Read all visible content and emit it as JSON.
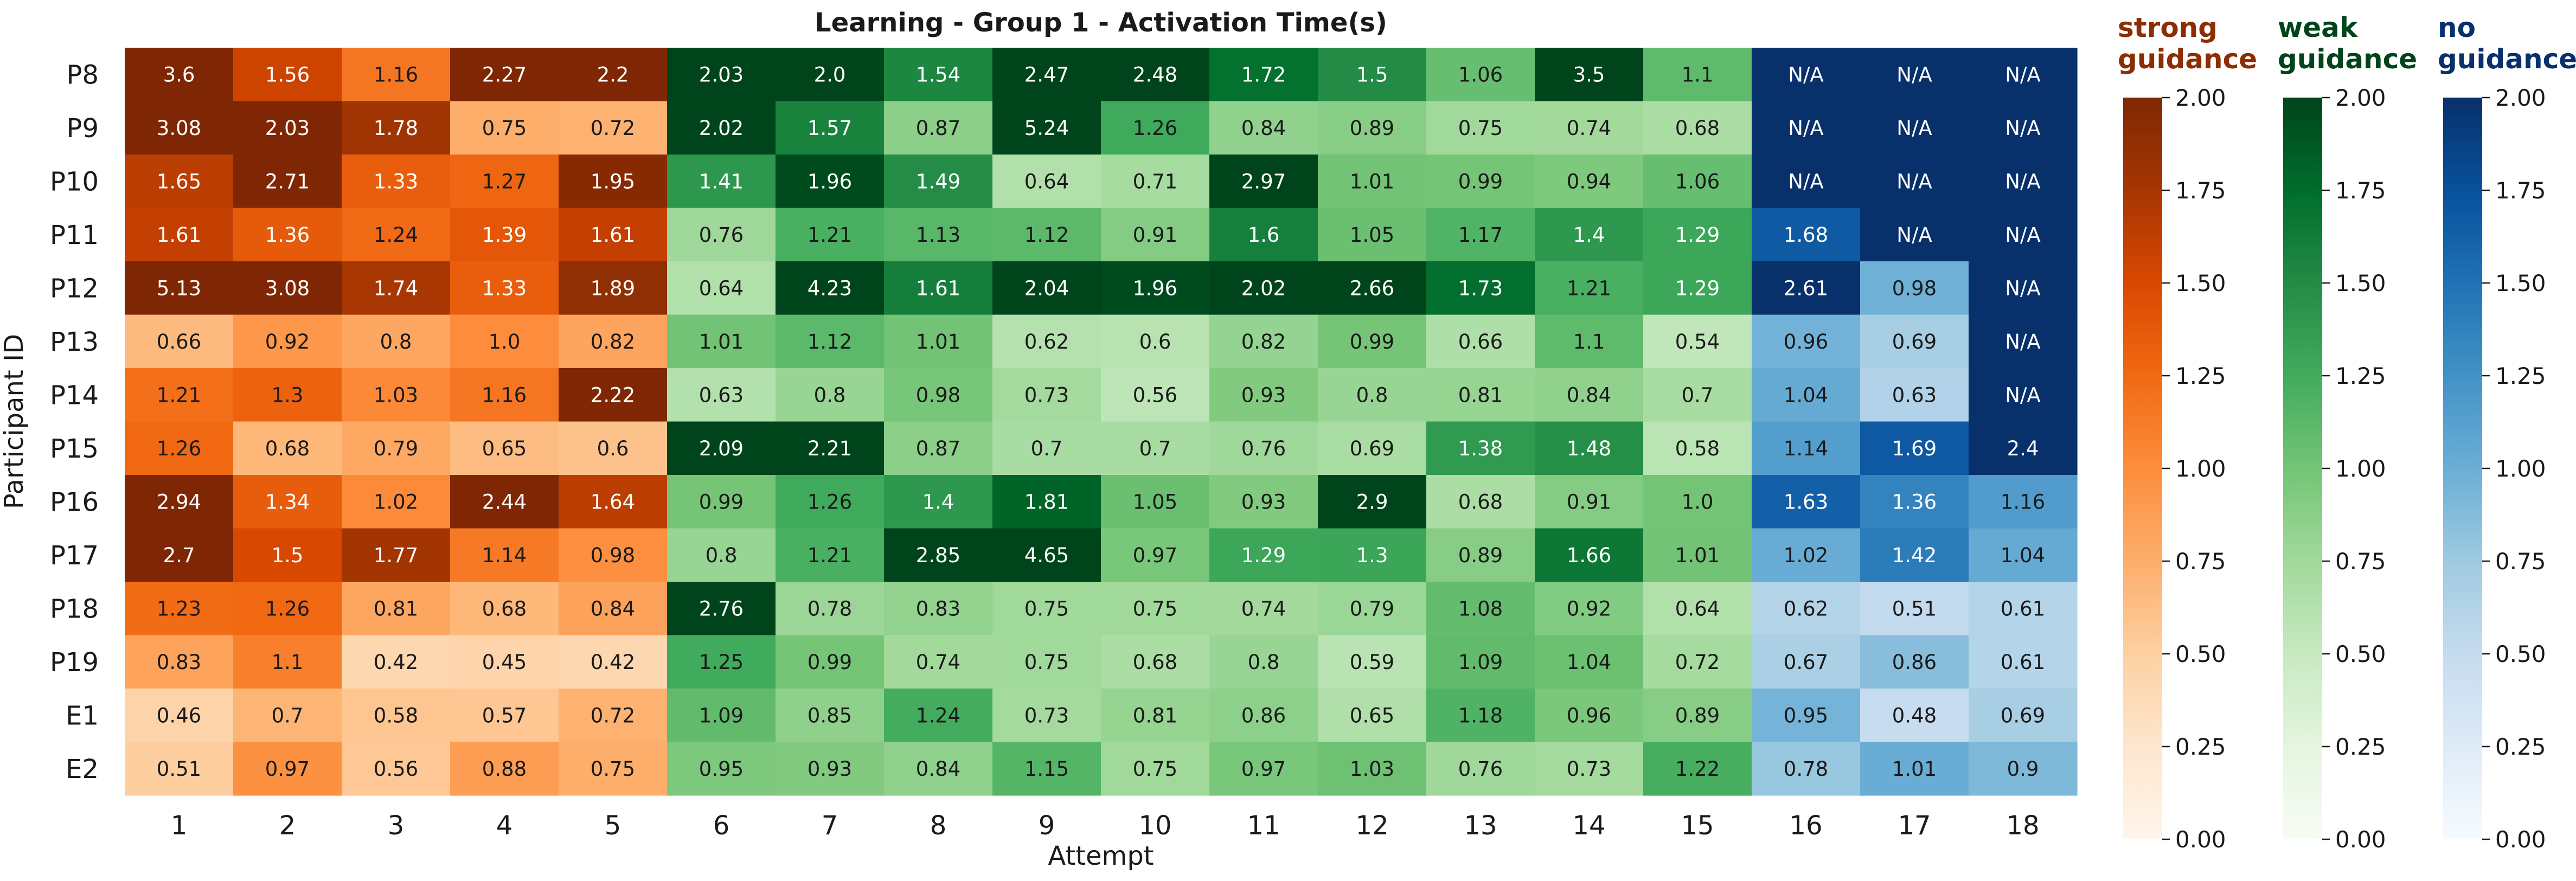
{
  "chart_data": {
    "type": "heatmap",
    "title": "Learning - Group 1 - Activation Time(s)",
    "xlabel": "Attempt",
    "ylabel": "Participant ID",
    "x": [
      "1",
      "2",
      "3",
      "4",
      "5",
      "6",
      "7",
      "8",
      "9",
      "10",
      "11",
      "12",
      "13",
      "14",
      "15",
      "16",
      "17",
      "18"
    ],
    "y": [
      "P8",
      "P9",
      "P10",
      "P11",
      "P12",
      "P13",
      "P14",
      "P15",
      "P16",
      "P17",
      "P18",
      "P19",
      "E1",
      "E2"
    ],
    "values": [
      [
        "3.6",
        "1.56",
        "1.16",
        "2.27",
        "2.2",
        "2.03",
        "2.0",
        "1.54",
        "2.47",
        "2.48",
        "1.72",
        "1.5",
        "1.06",
        "3.5",
        "1.1",
        "N/A",
        "N/A",
        "N/A"
      ],
      [
        "3.08",
        "2.03",
        "1.78",
        "0.75",
        "0.72",
        "2.02",
        "1.57",
        "0.87",
        "5.24",
        "1.26",
        "0.84",
        "0.89",
        "0.75",
        "0.74",
        "0.68",
        "N/A",
        "N/A",
        "N/A"
      ],
      [
        "1.65",
        "2.71",
        "1.33",
        "1.27",
        "1.95",
        "1.41",
        "1.96",
        "1.49",
        "0.64",
        "0.71",
        "2.97",
        "1.01",
        "0.99",
        "0.94",
        "1.06",
        "N/A",
        "N/A",
        "N/A"
      ],
      [
        "1.61",
        "1.36",
        "1.24",
        "1.39",
        "1.61",
        "0.76",
        "1.21",
        "1.13",
        "1.12",
        "0.91",
        "1.6",
        "1.05",
        "1.17",
        "1.4",
        "1.29",
        "1.68",
        "N/A",
        "N/A"
      ],
      [
        "5.13",
        "3.08",
        "1.74",
        "1.33",
        "1.89",
        "0.64",
        "4.23",
        "1.61",
        "2.04",
        "1.96",
        "2.02",
        "2.66",
        "1.73",
        "1.21",
        "1.29",
        "2.61",
        "0.98",
        "N/A"
      ],
      [
        "0.66",
        "0.92",
        "0.8",
        "1.0",
        "0.82",
        "1.01",
        "1.12",
        "1.01",
        "0.62",
        "0.6",
        "0.82",
        "0.99",
        "0.66",
        "1.1",
        "0.54",
        "0.96",
        "0.69",
        "N/A"
      ],
      [
        "1.21",
        "1.3",
        "1.03",
        "1.16",
        "2.22",
        "0.63",
        "0.8",
        "0.98",
        "0.73",
        "0.56",
        "0.93",
        "0.8",
        "0.81",
        "0.84",
        "0.7",
        "1.04",
        "0.63",
        "N/A"
      ],
      [
        "1.26",
        "0.68",
        "0.79",
        "0.65",
        "0.6",
        "2.09",
        "2.21",
        "0.87",
        "0.7",
        "0.7",
        "0.76",
        "0.69",
        "1.38",
        "1.48",
        "0.58",
        "1.14",
        "1.69",
        "2.4"
      ],
      [
        "2.94",
        "1.34",
        "1.02",
        "2.44",
        "1.64",
        "0.99",
        "1.26",
        "1.4",
        "1.81",
        "1.05",
        "0.93",
        "2.9",
        "0.68",
        "0.91",
        "1.0",
        "1.63",
        "1.36",
        "1.16"
      ],
      [
        "2.7",
        "1.5",
        "1.77",
        "1.14",
        "0.98",
        "0.8",
        "1.21",
        "2.85",
        "4.65",
        "0.97",
        "1.29",
        "1.3",
        "0.89",
        "1.66",
        "1.01",
        "1.02",
        "1.42",
        "1.04"
      ],
      [
        "1.23",
        "1.26",
        "0.81",
        "0.68",
        "0.84",
        "2.76",
        "0.78",
        "0.83",
        "0.75",
        "0.75",
        "0.74",
        "0.79",
        "1.08",
        "0.92",
        "0.64",
        "0.62",
        "0.51",
        "0.61"
      ],
      [
        "0.83",
        "1.1",
        "0.42",
        "0.45",
        "0.42",
        "1.25",
        "0.99",
        "0.74",
        "0.75",
        "0.68",
        "0.8",
        "0.59",
        "1.09",
        "1.04",
        "0.72",
        "0.67",
        "0.86",
        "0.61"
      ],
      [
        "0.46",
        "0.7",
        "0.58",
        "0.57",
        "0.72",
        "1.09",
        "0.85",
        "1.24",
        "0.73",
        "0.81",
        "0.86",
        "0.65",
        "1.18",
        "0.96",
        "0.89",
        "0.95",
        "0.48",
        "0.69"
      ],
      [
        "0.51",
        "0.97",
        "0.56",
        "0.88",
        "0.75",
        "0.95",
        "0.93",
        "0.84",
        "1.15",
        "0.75",
        "0.97",
        "1.03",
        "0.76",
        "0.73",
        "1.22",
        "0.78",
        "1.01",
        "0.9"
      ]
    ],
    "vmin": 0,
    "vmax": 2,
    "groups": [
      {
        "name": "strong guidance",
        "title_lines": [
          "strong",
          "guidance"
        ],
        "columns": [
          1,
          2,
          3,
          4,
          5
        ],
        "palette": "Oranges",
        "title_color": "#8c2d04"
      },
      {
        "name": "weak guidance",
        "title_lines": [
          "weak",
          "guidance"
        ],
        "columns": [
          6,
          7,
          8,
          9,
          10,
          11,
          12,
          13,
          14,
          15
        ],
        "palette": "Greens",
        "title_color": "#00441b"
      },
      {
        "name": "no guidance",
        "title_lines": [
          "no",
          "guidance"
        ],
        "columns": [
          16,
          17,
          18
        ],
        "palette": "Blues",
        "title_color": "#08306b"
      }
    ],
    "colorbar_ticks": [
      "0.00",
      "0.25",
      "0.50",
      "0.75",
      "1.00",
      "1.25",
      "1.50",
      "1.75",
      "2.00"
    ],
    "na_label": "N/A"
  }
}
